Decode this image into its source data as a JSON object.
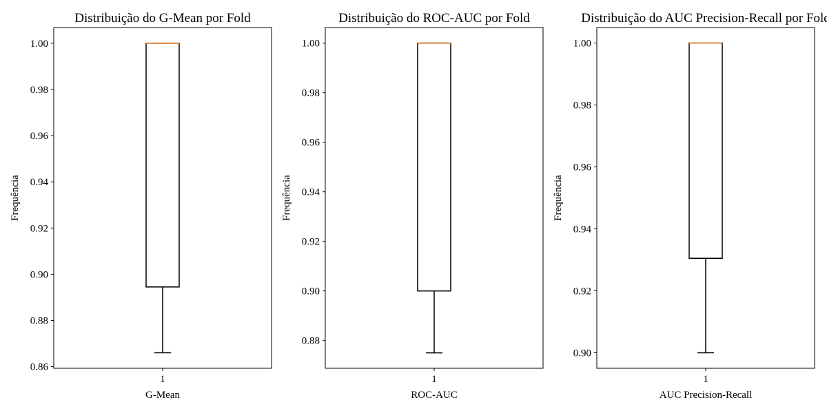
{
  "colors": {
    "box": "#000000",
    "median": "#e08a3c",
    "background": "#ffffff"
  },
  "chart_data": [
    {
      "type": "box",
      "title": "Distribuição do G-Mean por Fold",
      "xlabel": "G-Mean",
      "ylabel": "Frequência",
      "categories": [
        "1"
      ],
      "ylim": [
        0.8593,
        1.0068
      ],
      "yticks": [
        0.86,
        0.88,
        0.9,
        0.92,
        0.94,
        0.96,
        0.98,
        1.0
      ],
      "ytick_labels": [
        "0.86",
        "0.88",
        "0.90",
        "0.92",
        "0.94",
        "0.96",
        "0.98",
        "1.00"
      ],
      "box": {
        "whislo": 0.866,
        "q1": 0.8945,
        "median": 1.0,
        "q3": 1.0,
        "whishi": 1.0
      },
      "grid": false
    },
    {
      "type": "box",
      "title": "Distribuição do ROC-AUC por Fold",
      "xlabel": "ROC-AUC",
      "ylabel": "Frequência",
      "categories": [
        "1"
      ],
      "ylim": [
        0.8688,
        1.0063
      ],
      "yticks": [
        0.88,
        0.9,
        0.92,
        0.94,
        0.96,
        0.98,
        1.0
      ],
      "ytick_labels": [
        "0.88",
        "0.90",
        "0.92",
        "0.94",
        "0.96",
        "0.98",
        "1.00"
      ],
      "box": {
        "whislo": 0.875,
        "q1": 0.9,
        "median": 1.0,
        "q3": 1.0,
        "whishi": 1.0
      },
      "grid": false
    },
    {
      "type": "box",
      "title": "Distribuição do AUC Precision-Recall por Fold",
      "xlabel": "AUC Precision-Recall",
      "ylabel": "Frequência",
      "categories": [
        "1"
      ],
      "ylim": [
        0.895,
        1.005
      ],
      "yticks": [
        0.9,
        0.92,
        0.94,
        0.96,
        0.98,
        1.0
      ],
      "ytick_labels": [
        "0.90",
        "0.92",
        "0.94",
        "0.96",
        "0.98",
        "1.00"
      ],
      "box": {
        "whislo": 0.9,
        "q1": 0.9305,
        "median": 1.0,
        "q3": 1.0,
        "whishi": 1.0
      },
      "grid": false
    }
  ]
}
